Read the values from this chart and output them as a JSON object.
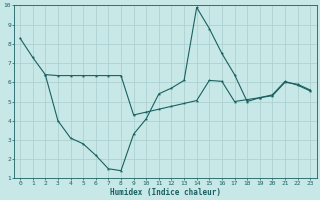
{
  "xlabel": "Humidex (Indice chaleur)",
  "xlim": [
    -0.5,
    23.5
  ],
  "ylim": [
    1,
    10
  ],
  "xticks": [
    0,
    1,
    2,
    3,
    4,
    5,
    6,
    7,
    8,
    9,
    10,
    11,
    12,
    13,
    14,
    15,
    16,
    17,
    18,
    19,
    20,
    21,
    22,
    23
  ],
  "yticks": [
    1,
    2,
    3,
    4,
    5,
    6,
    7,
    8,
    9,
    10
  ],
  "bg_color": "#c8e8e8",
  "line_color": "#1a6060",
  "grid_color": "#a8cccc",
  "line1_x": [
    0,
    1,
    2,
    3,
    4,
    5,
    6,
    7,
    8,
    9,
    10,
    11,
    12,
    13,
    14,
    15,
    16,
    17,
    18,
    19,
    20,
    21,
    22,
    23
  ],
  "line1_y": [
    8.3,
    7.3,
    6.4,
    4.0,
    3.1,
    2.8,
    2.2,
    1.5,
    1.4,
    3.3,
    4.1,
    5.4,
    5.7,
    6.1,
    9.9,
    8.8,
    7.5,
    6.4,
    5.0,
    5.2,
    5.3,
    6.0,
    5.9,
    5.6
  ],
  "line2_x": [
    2,
    3,
    4,
    5,
    6,
    7,
    8,
    9,
    10,
    11,
    12,
    13,
    14,
    15,
    16,
    17,
    18,
    19,
    20,
    21,
    22,
    23
  ],
  "line2_y": [
    6.4,
    6.35,
    6.35,
    6.35,
    6.35,
    6.35,
    6.35,
    4.3,
    4.45,
    4.6,
    4.75,
    4.9,
    5.05,
    6.1,
    6.05,
    5.0,
    5.1,
    5.2,
    5.35,
    6.05,
    5.85,
    5.55
  ]
}
